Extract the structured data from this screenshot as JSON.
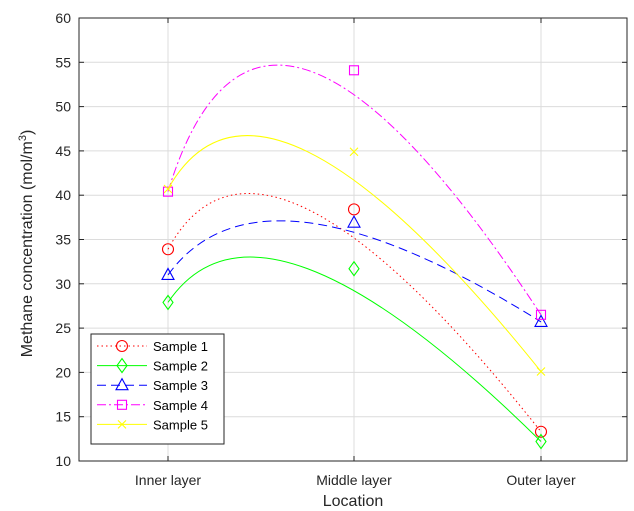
{
  "chart_data": {
    "type": "line",
    "categories": [
      "Inner layer",
      "Middle layer",
      "Outer layer"
    ],
    "xlabel": "Location",
    "ylabel": "Methane concentration (mol/m",
    "ylabel_sup": "3",
    "ylabel_end": ")",
    "ylim": [
      10,
      60
    ],
    "yticks": [
      10,
      15,
      20,
      25,
      30,
      35,
      40,
      45,
      50,
      55,
      60
    ],
    "grid": true,
    "legend_location": "bottom-left",
    "series": [
      {
        "name": "Sample 1",
        "values": [
          33.9,
          38.4,
          13.3
        ],
        "color": "#ff0000",
        "marker": "circle",
        "dash": "1.5,3"
      },
      {
        "name": "Sample 2",
        "values": [
          27.9,
          31.7,
          12.2
        ],
        "color": "#00ff00",
        "marker": "diamond",
        "dash": ""
      },
      {
        "name": "Sample 3",
        "values": [
          31.0,
          36.9,
          25.7
        ],
        "color": "#0000ff",
        "marker": "triangle",
        "dash": "9,5"
      },
      {
        "name": "Sample 4",
        "values": [
          40.4,
          54.1,
          26.5
        ],
        "color": "#ff00ff",
        "marker": "square",
        "dash": "9,3,2,3"
      },
      {
        "name": "Sample 5",
        "values": [
          40.7,
          44.9,
          20.1
        ],
        "color": "#ffff00",
        "marker": "x",
        "dash": ""
      }
    ]
  }
}
